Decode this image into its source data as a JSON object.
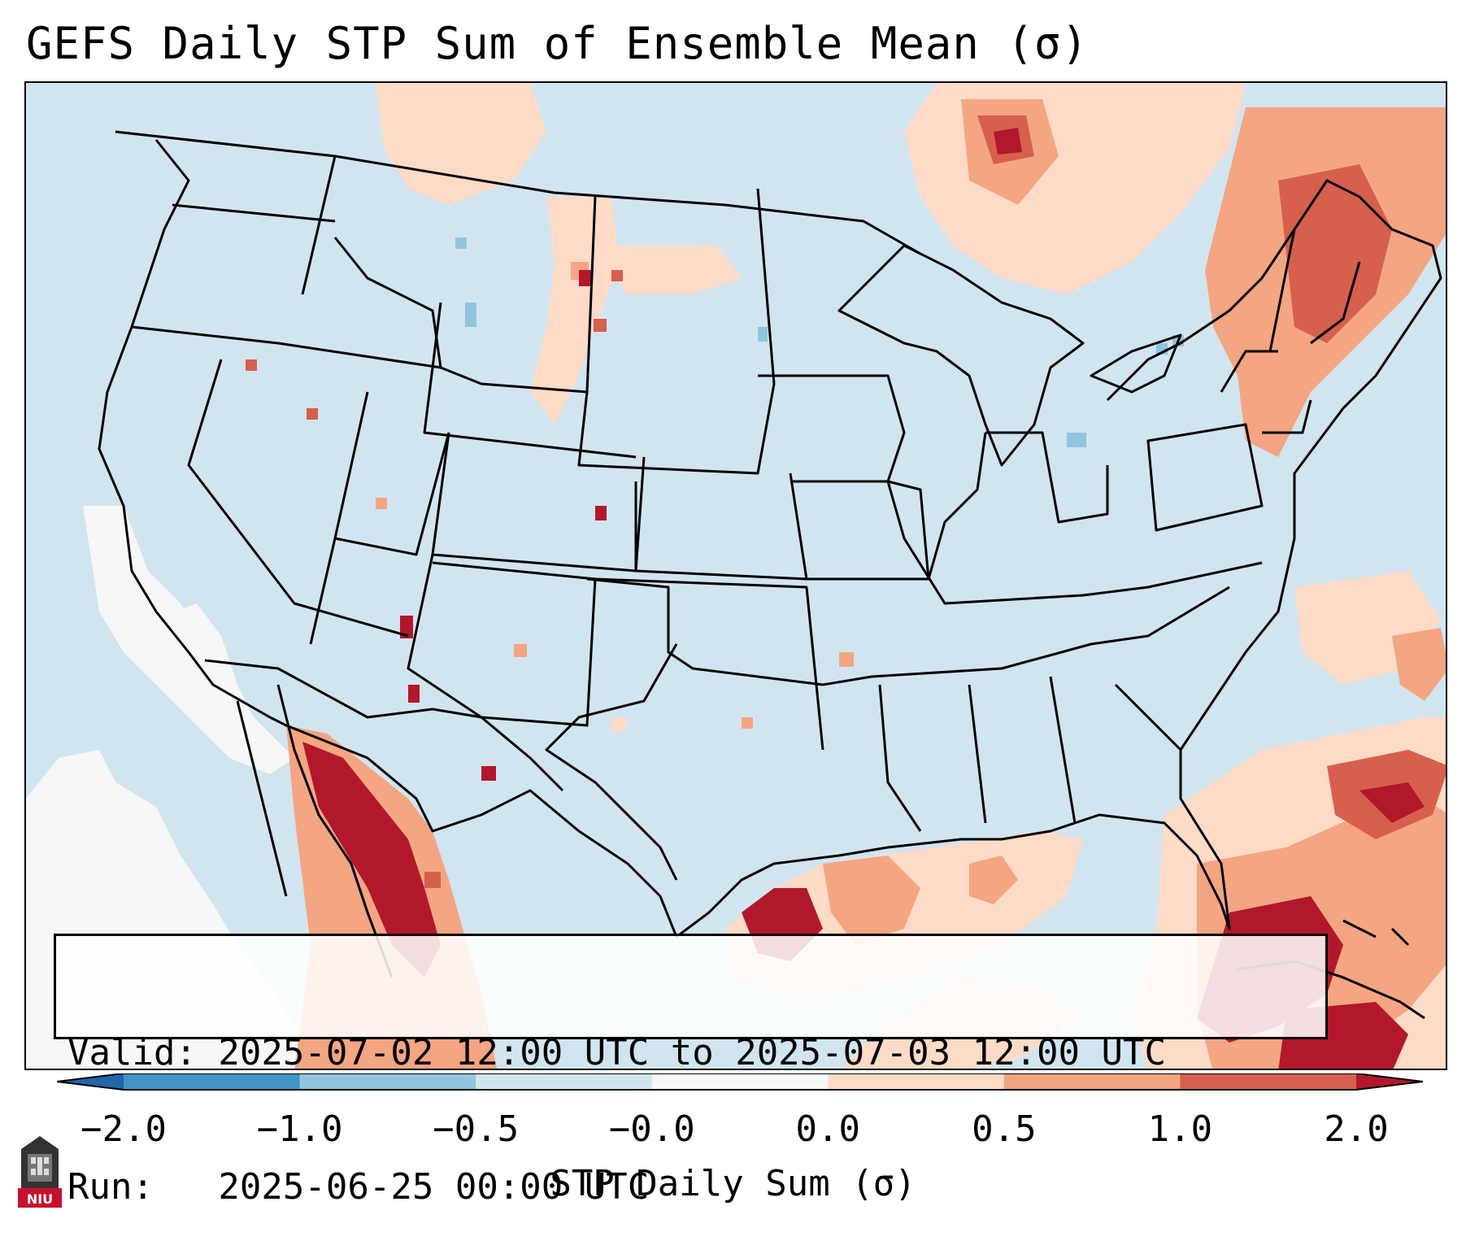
{
  "title": "GEFS Daily STP Sum of Ensemble Mean (σ)",
  "info": {
    "valid_line": "Valid: 2025-07-02 12:00 UTC to 2025-07-03 12:00 UTC",
    "run_line": "Run:   2025-06-25 00:00 UTC"
  },
  "colorbar": {
    "label": "STP Daily Sum (σ)",
    "ticks": [
      "−2.0",
      "−1.0",
      "−0.5",
      "−0.0",
      "0.0",
      "0.5",
      "1.0",
      "2.0"
    ],
    "bins": [
      {
        "from": -2.0,
        "to": -1.0,
        "color": "#4393c3"
      },
      {
        "from": -1.0,
        "to": -0.5,
        "color": "#92c5de"
      },
      {
        "from": -0.5,
        "to": -0.0,
        "color": "#d1e5f0"
      },
      {
        "from": -0.0,
        "to": 0.0,
        "color": "#f7f7f7"
      },
      {
        "from": 0.0,
        "to": 0.5,
        "color": "#fddbc7"
      },
      {
        "from": 0.5,
        "to": 1.0,
        "color": "#f4a582"
      },
      {
        "from": 1.0,
        "to": 2.0,
        "color": "#d6604d"
      }
    ],
    "under_color": "#2166ac",
    "over_color": "#b2182b"
  },
  "logo": {
    "text": "NIU",
    "color": "#c8102e"
  },
  "map": {
    "background_color": "#d1e5f0",
    "regions": [
      {
        "name": "mexico-west-coast",
        "level": "high"
      },
      {
        "name": "texas-gulf-coast",
        "level": "high"
      },
      {
        "name": "gulf-of-mexico",
        "level": "moderate"
      },
      {
        "name": "florida-and-atlantic",
        "level": "high"
      },
      {
        "name": "northeast",
        "level": "moderate"
      },
      {
        "name": "canada-south",
        "level": "moderate"
      },
      {
        "name": "northern-plains",
        "level": "low"
      },
      {
        "name": "pacific-ocean-west",
        "level": "neutral"
      }
    ]
  }
}
